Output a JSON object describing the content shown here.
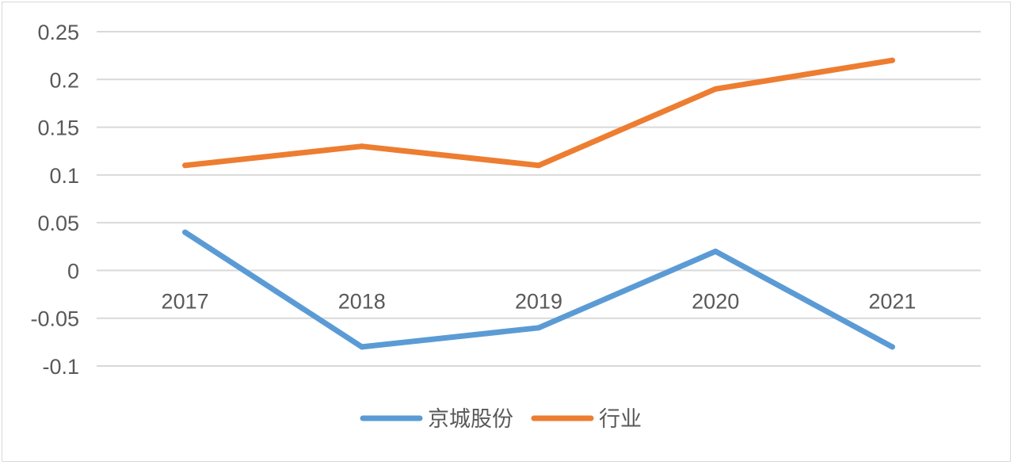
{
  "chart_data": {
    "type": "line",
    "categories": [
      "2017",
      "2018",
      "2019",
      "2020",
      "2021"
    ],
    "series": [
      {
        "name": "京城股份",
        "color": "#5B9BD5",
        "values": [
          0.04,
          -0.08,
          -0.06,
          0.02,
          -0.08
        ]
      },
      {
        "name": "行业",
        "color": "#ED7D31",
        "values": [
          0.11,
          0.13,
          0.11,
          0.19,
          0.22
        ]
      }
    ],
    "yticks": [
      "0.25",
      "0.2",
      "0.15",
      "0.1",
      "0.05",
      "0",
      "-0.05",
      "-0.1"
    ],
    "ylim": [
      -0.1,
      0.25
    ],
    "grid": true,
    "legend": "bottom",
    "title": "",
    "xlabel": "",
    "ylabel": ""
  }
}
